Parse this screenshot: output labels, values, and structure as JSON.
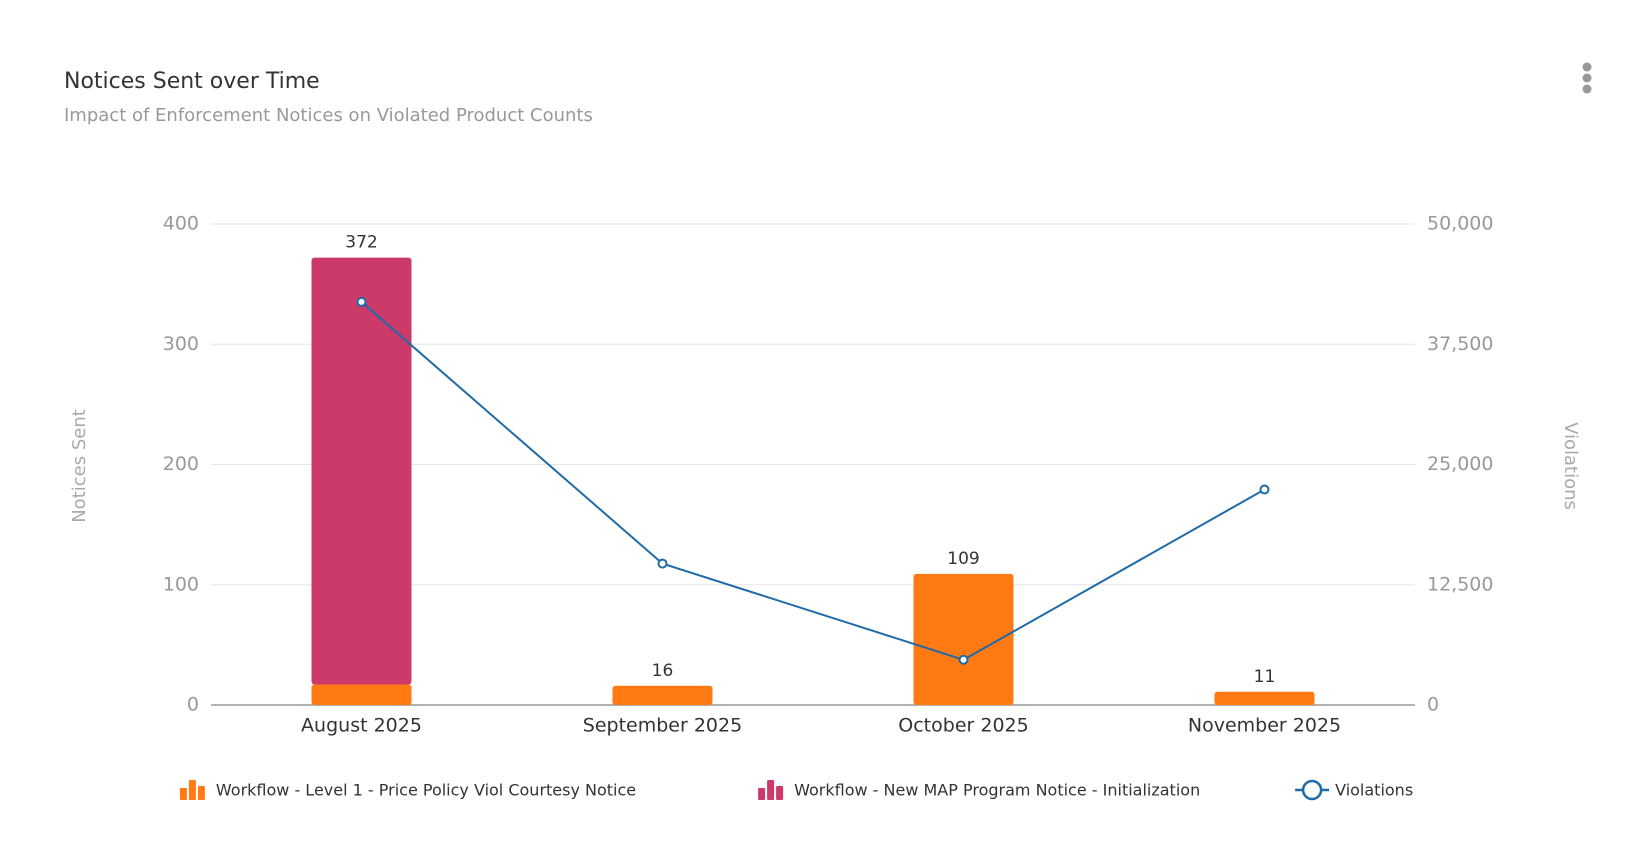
{
  "chart_data": {
    "type": "bar",
    "title": "Notices Sent over Time",
    "subtitle": "Impact of Enforcement Notices on Violated Product Counts",
    "y_label": "Notices Sent",
    "y2_label": "Violations",
    "categories": [
      "August 2025",
      "September 2025",
      "October 2025",
      "November 2025"
    ],
    "series": [
      {
        "name": "Workflow - Level 1 - Price Policy Viol Courtesy Notice",
        "color": "#ff7a12",
        "type": "bar",
        "values": [
          17,
          16,
          109,
          11
        ]
      },
      {
        "name": "Workflow - New MAP Program Notice - Initialization",
        "color": "#cc3a6a",
        "type": "bar",
        "values": [
          355,
          null,
          null,
          null
        ]
      },
      {
        "name": "Violations",
        "color": "#1f6aa8",
        "type": "line",
        "axis": "y2",
        "values": [
          41900,
          14700,
          4700,
          22400
        ]
      }
    ],
    "total_labels": [
      "372",
      "16",
      "109",
      "11"
    ],
    "ylim": [
      0,
      400
    ],
    "yticks": [
      0,
      100,
      200,
      300,
      400
    ],
    "y2lim": [
      0,
      50000
    ],
    "y2ticks": [
      0,
      {
        "value": 12500,
        "label": "12,500"
      },
      {
        "value": 25000,
        "label": "25,000"
      },
      {
        "value": 37500,
        "label": "37,500"
      },
      {
        "value": 50000,
        "label": "50,000"
      }
    ],
    "grid": true
  }
}
